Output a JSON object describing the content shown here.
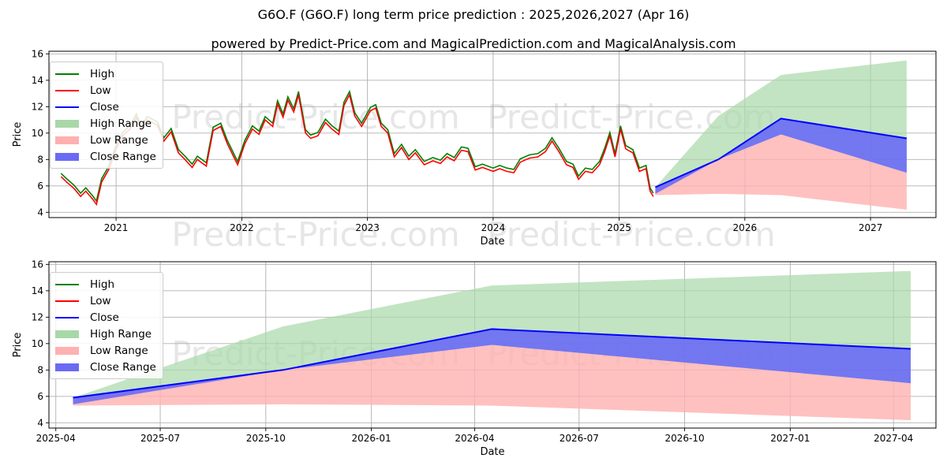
{
  "title": "G6O.F (G6O.F) long term price prediction : 2025,2026,2027 (Apr 16)",
  "subtitle": "powered by Predict-Price.com and MagicalPrediction.com and MagicalAnalysis.com",
  "watermark": "Predict-Price.com",
  "colors": {
    "high": "#008000",
    "low": "#ff0000",
    "close": "#0000ff",
    "high_range": "#a8d8a8",
    "low_range": "#ffb0b0",
    "close_range": "#6a6af5",
    "grid": "#b0b0b0"
  },
  "legend": {
    "high": "High",
    "low": "Low",
    "close": "Close",
    "high_range": "High Range",
    "low_range": "Low Range",
    "close_range": "Close Range"
  },
  "chart_data": [
    {
      "type": "line",
      "panel": "history-and-forecast",
      "xlabel": "Date",
      "ylabel": "Price",
      "x_ticks": [
        "2021",
        "2022",
        "2023",
        "2024",
        "2025",
        "2026",
        "2027"
      ],
      "y_ticks": [
        4,
        6,
        8,
        10,
        12,
        14,
        16
      ],
      "xlim": [
        "2020-06-20",
        "2027-07-10"
      ],
      "ylim": [
        3.6,
        16.2
      ],
      "grid": true,
      "legend_position": "upper-left",
      "history_high_low": [
        [
          "2020-07-25",
          6.7
        ],
        [
          "2020-08-10",
          6.3
        ],
        [
          "2020-09-01",
          5.8
        ],
        [
          "2020-09-20",
          5.2
        ],
        [
          "2020-10-05",
          5.6
        ],
        [
          "2020-10-25",
          5.0
        ],
        [
          "2020-11-05",
          4.6
        ],
        [
          "2020-11-20",
          6.3
        ],
        [
          "2020-12-10",
          7.2
        ],
        [
          "2021-01-01",
          8.8
        ],
        [
          "2021-01-20",
          9.8
        ],
        [
          "2021-02-10",
          10.3
        ],
        [
          "2021-03-01",
          11.2
        ],
        [
          "2021-03-15",
          10.2
        ],
        [
          "2021-04-01",
          11.0
        ],
        [
          "2021-05-01",
          10.6
        ],
        [
          "2021-05-20",
          9.4
        ],
        [
          "2021-06-10",
          10.1
        ],
        [
          "2021-07-01",
          8.5
        ],
        [
          "2021-07-20",
          8.0
        ],
        [
          "2021-08-10",
          7.4
        ],
        [
          "2021-08-25",
          8.0
        ],
        [
          "2021-09-20",
          7.5
        ],
        [
          "2021-10-10",
          10.2
        ],
        [
          "2021-11-01",
          10.5
        ],
        [
          "2021-11-20",
          9.2
        ],
        [
          "2021-12-20",
          7.6
        ],
        [
          "2022-01-10",
          9.2
        ],
        [
          "2022-02-01",
          10.3
        ],
        [
          "2022-02-20",
          9.9
        ],
        [
          "2022-03-10",
          11.0
        ],
        [
          "2022-04-01",
          10.5
        ],
        [
          "2022-04-15",
          12.2
        ],
        [
          "2022-05-01",
          11.2
        ],
        [
          "2022-05-15",
          12.5
        ],
        [
          "2022-06-01",
          11.6
        ],
        [
          "2022-06-15",
          12.9
        ],
        [
          "2022-07-05",
          10.0
        ],
        [
          "2022-07-20",
          9.6
        ],
        [
          "2022-08-10",
          9.8
        ],
        [
          "2022-09-01",
          10.8
        ],
        [
          "2022-09-20",
          10.3
        ],
        [
          "2022-10-10",
          9.9
        ],
        [
          "2022-10-25",
          12.1
        ],
        [
          "2022-11-10",
          12.9
        ],
        [
          "2022-11-25",
          11.3
        ],
        [
          "2022-12-15",
          10.5
        ],
        [
          "2023-01-10",
          11.7
        ],
        [
          "2023-01-25",
          11.9
        ],
        [
          "2023-02-10",
          10.5
        ],
        [
          "2023-03-01",
          10.0
        ],
        [
          "2023-03-20",
          8.2
        ],
        [
          "2023-04-10",
          8.9
        ],
        [
          "2023-05-01",
          8.0
        ],
        [
          "2023-05-20",
          8.5
        ],
        [
          "2023-06-15",
          7.6
        ],
        [
          "2023-07-10",
          7.9
        ],
        [
          "2023-08-01",
          7.7
        ],
        [
          "2023-08-20",
          8.2
        ],
        [
          "2023-09-10",
          7.9
        ],
        [
          "2023-10-01",
          8.7
        ],
        [
          "2023-10-20",
          8.6
        ],
        [
          "2023-11-10",
          7.2
        ],
        [
          "2023-12-01",
          7.4
        ],
        [
          "2024-01-01",
          7.1
        ],
        [
          "2024-01-20",
          7.3
        ],
        [
          "2024-02-10",
          7.1
        ],
        [
          "2024-03-01",
          7.0
        ],
        [
          "2024-03-20",
          7.8
        ],
        [
          "2024-04-15",
          8.1
        ],
        [
          "2024-05-10",
          8.2
        ],
        [
          "2024-06-01",
          8.6
        ],
        [
          "2024-06-20",
          9.4
        ],
        [
          "2024-07-10",
          8.6
        ],
        [
          "2024-08-01",
          7.6
        ],
        [
          "2024-08-20",
          7.4
        ],
        [
          "2024-09-05",
          6.5
        ],
        [
          "2024-09-25",
          7.1
        ],
        [
          "2024-10-15",
          7.0
        ],
        [
          "2024-11-05",
          7.6
        ],
        [
          "2024-11-20",
          8.6
        ],
        [
          "2024-12-05",
          9.8
        ],
        [
          "2024-12-20",
          8.2
        ],
        [
          "2025-01-05",
          10.3
        ],
        [
          "2025-01-20",
          8.8
        ],
        [
          "2025-02-10",
          8.5
        ],
        [
          "2025-03-01",
          7.1
        ],
        [
          "2025-03-20",
          7.3
        ],
        [
          "2025-04-01",
          5.6
        ],
        [
          "2025-04-10",
          5.2
        ]
      ],
      "forecast": {
        "dates": [
          "2025-04-16",
          "2025-10-16",
          "2026-04-16",
          "2027-04-16"
        ],
        "close": [
          5.9,
          8.0,
          11.1,
          9.6
        ],
        "high_range": [
          [
            5.8,
            5.9
          ],
          [
            8.0,
            11.3
          ],
          [
            9.9,
            14.4
          ],
          [
            7.0,
            15.5
          ]
        ],
        "low_range": [
          [
            5.3,
            5.8
          ],
          [
            5.4,
            8.0
          ],
          [
            5.3,
            9.9
          ],
          [
            4.2,
            7.0
          ]
        ],
        "close_range": [
          [
            5.4,
            5.9
          ],
          [
            8.0,
            8.0
          ],
          [
            9.9,
            11.1
          ],
          [
            7.0,
            9.6
          ]
        ]
      }
    },
    {
      "type": "line",
      "panel": "forecast-zoom",
      "xlabel": "Date",
      "ylabel": "Price",
      "x_ticks": [
        "2025-04",
        "2025-07",
        "2025-10",
        "2026-01",
        "2026-04",
        "2026-07",
        "2026-10",
        "2027-01",
        "2027-04"
      ],
      "y_ticks": [
        4,
        6,
        8,
        10,
        12,
        14,
        16
      ],
      "xlim": [
        "2025-03-26",
        "2027-05-08"
      ],
      "ylim": [
        3.6,
        16.2
      ],
      "grid": true,
      "legend_position": "upper-left"
    }
  ]
}
